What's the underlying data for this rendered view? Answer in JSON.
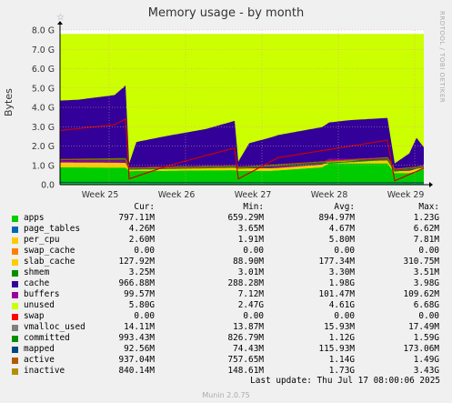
{
  "title": "Memory usage - by month",
  "watermark": "RRDTOOL / TOBI OETIKER",
  "version": "Munin 2.0.75",
  "last_update": "Last update: Thu Jul 17 08:00:06 2025",
  "headers": {
    "cur": "Cur:",
    "min": "Min:",
    "avg": "Avg:",
    "max": "Max:"
  },
  "legend": [
    {
      "name": "apps",
      "color": "#00cc00",
      "cur": "797.11M",
      "min": "659.29M",
      "avg": "894.97M",
      "max": "1.23G"
    },
    {
      "name": "page_tables",
      "color": "#0066b3",
      "cur": "4.26M",
      "min": "3.65M",
      "avg": "4.67M",
      "max": "6.62M"
    },
    {
      "name": "per_cpu",
      "color": "#ffcc00",
      "cur": "2.60M",
      "min": "1.91M",
      "avg": "5.80M",
      "max": "7.81M"
    },
    {
      "name": "swap_cache",
      "color": "#ff8000",
      "cur": "0.00",
      "min": "0.00",
      "avg": "0.00",
      "max": "0.00"
    },
    {
      "name": "slab_cache",
      "color": "#ffcc00",
      "cur": "127.92M",
      "min": "88.90M",
      "avg": "177.34M",
      "max": "310.75M"
    },
    {
      "name": "shmem",
      "color": "#008f00",
      "cur": "3.25M",
      "min": "3.01M",
      "avg": "3.30M",
      "max": "3.51M"
    },
    {
      "name": "cache",
      "color": "#330099",
      "cur": "966.88M",
      "min": "288.28M",
      "avg": "1.98G",
      "max": "3.98G"
    },
    {
      "name": "buffers",
      "color": "#990099",
      "cur": "99.57M",
      "min": "7.12M",
      "avg": "101.47M",
      "max": "109.62M"
    },
    {
      "name": "unused",
      "color": "#ccff00",
      "cur": "5.80G",
      "min": "2.47G",
      "avg": "4.61G",
      "max": "6.68G"
    },
    {
      "name": "swap",
      "color": "#ff0000",
      "cur": "0.00",
      "min": "0.00",
      "avg": "0.00",
      "max": "0.00"
    },
    {
      "name": "vmalloc_used",
      "color": "#808080",
      "cur": "14.11M",
      "min": "13.87M",
      "avg": "15.93M",
      "max": "17.49M"
    },
    {
      "name": "committed",
      "color": "#008f00",
      "cur": "993.43M",
      "min": "826.79M",
      "avg": "1.12G",
      "max": "1.59G"
    },
    {
      "name": "mapped",
      "color": "#00487d",
      "cur": "92.56M",
      "min": "74.43M",
      "avg": "115.93M",
      "max": "173.06M"
    },
    {
      "name": "active",
      "color": "#b35a00",
      "cur": "937.04M",
      "min": "757.65M",
      "avg": "1.14G",
      "max": "1.49G"
    },
    {
      "name": "inactive",
      "color": "#b38f00",
      "cur": "840.14M",
      "min": "148.61M",
      "avg": "1.73G",
      "max": "3.43G"
    }
  ],
  "chart_data": {
    "type": "area",
    "title": "Memory usage - by month",
    "ylabel": "Bytes",
    "ylim": [
      0,
      8.0
    ],
    "y_unit": "G",
    "yticks": [
      "0.0",
      "1.0 G",
      "2.0 G",
      "3.0 G",
      "4.0 G",
      "5.0 G",
      "6.0 G",
      "7.0 G",
      "8.0 G"
    ],
    "x_ticks": [
      "Week 25",
      "Week 26",
      "Week 27",
      "Week 28",
      "Week 29"
    ],
    "total_ram_G": 7.8,
    "series": [
      {
        "name": "apps",
        "color": "#00cc00",
        "x": [
          0,
          0.18,
          0.19,
          0.27,
          0.28,
          0.48,
          0.49,
          0.58,
          0.6,
          0.72,
          0.74,
          0.9,
          0.92,
          0.96,
          1.0
        ],
        "values": [
          0.9,
          0.88,
          0.7,
          0.72,
          0.72,
          0.75,
          0.72,
          0.72,
          0.74,
          0.9,
          1.1,
          1.1,
          0.6,
          0.6,
          0.8
        ]
      },
      {
        "name": "slab_cache",
        "color": "#ffcc00",
        "x": [
          0,
          0.18,
          0.19,
          0.48,
          0.49,
          0.9,
          0.92,
          1.0
        ],
        "values": [
          0.25,
          0.25,
          0.1,
          0.15,
          0.12,
          0.15,
          0.1,
          0.13
        ]
      },
      {
        "name": "cache",
        "color": "#330099",
        "x": [
          0,
          0.05,
          0.15,
          0.18,
          0.19,
          0.21,
          0.3,
          0.4,
          0.48,
          0.49,
          0.52,
          0.6,
          0.7,
          0.8,
          0.9,
          0.92,
          0.96,
          0.98,
          1.0
        ],
        "values": [
          3.1,
          3.15,
          3.4,
          3.9,
          0.2,
          1.3,
          1.6,
          1.9,
          2.3,
          0.25,
          1.2,
          1.6,
          1.8,
          2.0,
          2.1,
          0.3,
          0.8,
          1.5,
          0.9
        ]
      },
      {
        "name": "buffers",
        "color": "#990099",
        "x": [
          0,
          1.0
        ],
        "values": [
          0.1,
          0.1
        ]
      },
      {
        "name": "unused",
        "color": "#ccff00",
        "x": [
          0,
          1.0
        ],
        "values": [
          7.8,
          7.8
        ]
      },
      {
        "name": "committed",
        "color": "#008f00",
        "x": [
          0,
          0.18,
          0.19,
          0.48,
          0.49,
          0.9,
          0.92,
          1.0
        ],
        "values": [
          1.3,
          1.3,
          0.8,
          0.9,
          0.85,
          1.3,
          0.7,
          0.9
        ]
      },
      {
        "name": "mapped",
        "color": "#00487d",
        "x": [
          0,
          1.0
        ],
        "values": [
          0.12,
          0.1
        ]
      },
      {
        "name": "active",
        "color": "#b35a00",
        "x": [
          0,
          0.18,
          0.19,
          0.48,
          0.49,
          0.9,
          0.92,
          1.0
        ],
        "values": [
          1.3,
          1.35,
          0.85,
          0.95,
          0.9,
          1.4,
          0.8,
          0.94
        ]
      },
      {
        "name": "inactive",
        "color": "#b38f00",
        "x": [
          0,
          0.05,
          0.15,
          0.18,
          0.19,
          0.3,
          0.48,
          0.49,
          0.6,
          0.9,
          0.92,
          1.0
        ],
        "values": [
          2.8,
          2.9,
          3.1,
          3.4,
          0.3,
          1.0,
          1.9,
          0.3,
          1.4,
          2.3,
          0.2,
          0.85
        ]
      }
    ]
  }
}
